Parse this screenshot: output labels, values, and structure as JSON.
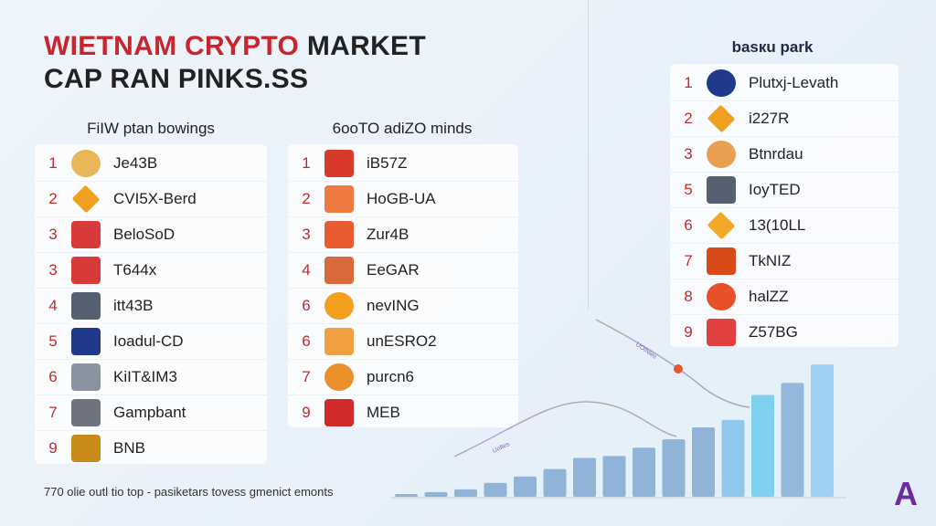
{
  "title": {
    "line1_red": "WIETNAM CRYPTO",
    "line1_black": "MARKET",
    "line2": "CAP RAN PINKS.SS"
  },
  "left": {
    "heading": "FiIW ptan bowings",
    "items": [
      {
        "rank": "1",
        "name": "Je43B",
        "icon": "gold-coin-icon",
        "color": "#e8b75a"
      },
      {
        "rank": "2",
        "name": "CVI5X-Berd",
        "icon": "orange-diamond-icon",
        "color": "#f0a020"
      },
      {
        "rank": "3",
        "name": "BeloSoD",
        "icon": "red-gate-icon",
        "color": "#d83a3a"
      },
      {
        "rank": "3",
        "name": "T644x",
        "icon": "red-shield-icon",
        "color": "#d83a3a"
      },
      {
        "rank": "4",
        "name": "itt43B",
        "icon": "gray-fox-icon",
        "color": "#556070"
      },
      {
        "rank": "5",
        "name": "Ioadul-CD",
        "icon": "uk-flag-icon",
        "color": "#1f3a8a"
      },
      {
        "rank": "6",
        "name": "KiIT&IM3",
        "icon": "silver-badge-icon",
        "color": "#8a94a0"
      },
      {
        "rank": "7",
        "name": "Gampbant",
        "icon": "gray-shield-icon",
        "color": "#6d7480"
      },
      {
        "rank": "9",
        "name": "BNB",
        "icon": "bnb-badge-icon",
        "color": "#c98a1a"
      }
    ]
  },
  "middle": {
    "heading": "6ooTO adiZO minds",
    "items": [
      {
        "rank": "1",
        "name": "iB57Z",
        "icon": "red-m-icon",
        "color": "#d83a2a"
      },
      {
        "rank": "2",
        "name": "HoGB-UA",
        "icon": "orange-building-icon",
        "color": "#ee7a40"
      },
      {
        "rank": "3",
        "name": "Zur4B",
        "icon": "orange-shield-icon",
        "color": "#e85a30"
      },
      {
        "rank": "4",
        "name": "EeGAR",
        "icon": "crest-icon",
        "color": "#d86a3a"
      },
      {
        "rank": "6",
        "name": "nevING",
        "icon": "bitcoin-icon",
        "color": "#f2a01e"
      },
      {
        "rank": "6",
        "name": "unESRO2",
        "icon": "orange-pill-icon",
        "color": "#f0a040"
      },
      {
        "rank": "7",
        "name": "purcn6",
        "icon": "orange-token-icon",
        "color": "#e8902a"
      },
      {
        "rank": "9",
        "name": "MEB",
        "icon": "red-flag-icon",
        "color": "#d02a2a"
      }
    ]
  },
  "right": {
    "heading": "basкu park",
    "items": [
      {
        "rank": "1",
        "name": "Plutxj-Levath",
        "icon": "blue-circle-icon",
        "color": "#1f3a8a"
      },
      {
        "rank": "2",
        "name": "i227R",
        "icon": "orange-diamond-icon",
        "color": "#f0a020"
      },
      {
        "rank": "3",
        "name": "Btnrdau",
        "icon": "coin-icon",
        "color": "#e8a050"
      },
      {
        "rank": "5",
        "name": "IoyTED",
        "icon": "fox-icon",
        "color": "#556070"
      },
      {
        "rank": "6",
        "name": "13(10LL",
        "icon": "orange-diamond-icon",
        "color": "#f2a828"
      },
      {
        "rank": "7",
        "name": "TkNIZ",
        "icon": "red-one-icon",
        "color": "#d84a1a"
      },
      {
        "rank": "8",
        "name": "halZZ",
        "icon": "orange-circle-icon",
        "color": "#e8502a"
      },
      {
        "rank": "9",
        "name": "Z57BG",
        "icon": "red-m-icon",
        "color": "#e04040"
      }
    ]
  },
  "footer": "770 olie outl tio top - pasiketars tovess gmenict emonts",
  "logo": "A",
  "chart_data": {
    "type": "bar",
    "values": [
      3,
      5,
      8,
      15,
      22,
      30,
      42,
      44,
      53,
      62,
      75,
      83,
      110,
      123,
      143
    ],
    "colors": [
      "#8fb4d8",
      "#8fb4d8",
      "#8fb4d8",
      "#8fb4d8",
      "#8fb4d8",
      "#8fb4d8",
      "#8fb4d8",
      "#8fb4d8",
      "#8fb4d8",
      "#8fb4d8",
      "#8fb4d8",
      "#90c8ea",
      "#7fd0f0",
      "#93b8dc",
      "#9fd2f2"
    ],
    "curve_labels": [
      "Uoltes",
      "UOtNies"
    ]
  }
}
